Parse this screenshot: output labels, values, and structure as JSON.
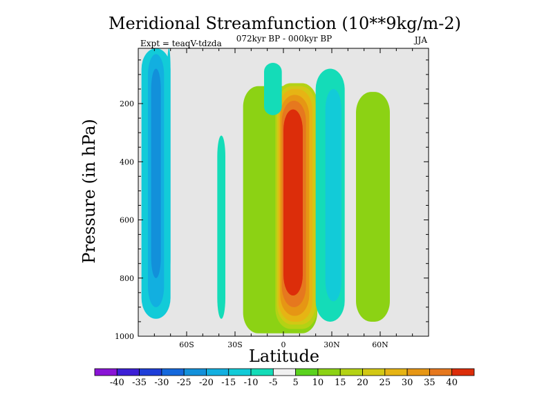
{
  "chart_data": {
    "type": "heatmap",
    "title": "Meridional Streamfunction (10**9kg/m-2)",
    "subtitle_left": "Expt = teaqV-tdzda",
    "subtitle_center": "072kyr BP - 000kyr BP",
    "subtitle_right": "JJA",
    "xlabel": "Latitude",
    "ylabel": "Pressure (in hPa)",
    "xlim": [
      -90,
      90
    ],
    "ylim": [
      1000,
      10
    ],
    "y_inverted": true,
    "x_ticks": [
      {
        "value": -60,
        "label": "60S"
      },
      {
        "value": -30,
        "label": "30S"
      },
      {
        "value": 0,
        "label": "0"
      },
      {
        "value": 30,
        "label": "30N"
      },
      {
        "value": 60,
        "label": "60N"
      }
    ],
    "y_ticks": [
      {
        "value": 200,
        "label": "200"
      },
      {
        "value": 400,
        "label": "400"
      },
      {
        "value": 600,
        "label": "600"
      },
      {
        "value": 800,
        "label": "800"
      },
      {
        "value": 1000,
        "label": "1000"
      }
    ],
    "background_color": "#e6e6e6",
    "colorbar": {
      "levels": [
        "-40",
        "-35",
        "-30",
        "-25",
        "-20",
        "-15",
        "-10",
        "-5",
        "5",
        "10",
        "15",
        "20",
        "25",
        "30",
        "35",
        "40"
      ],
      "colors": [
        "#8a14d6",
        "#3c1fd6",
        "#1e3ed8",
        "#1468dc",
        "#1290da",
        "#12afe0",
        "#12cbd8",
        "#14dcb8",
        "#f0f0f0",
        "#5ad21e",
        "#8cd214",
        "#b4d214",
        "#d2c814",
        "#e6b414",
        "#e69614",
        "#e6781e",
        "#dc2d0a"
      ]
    },
    "field_regions": [
      {
        "lat": [
          -88,
          -70
        ],
        "p": [
          10,
          940
        ],
        "bin": "-15"
      },
      {
        "lat": [
          -84,
          -74
        ],
        "p": [
          30,
          900
        ],
        "bin": "-20"
      },
      {
        "lat": [
          -82,
          -76
        ],
        "p": [
          80,
          800
        ],
        "bin": "-25"
      },
      {
        "lat": [
          -72,
          -70
        ],
        "p": [
          10,
          800
        ],
        "bin": "-15"
      },
      {
        "lat": [
          -41,
          -36
        ],
        "p": [
          310,
          940
        ],
        "bin": "-10"
      },
      {
        "lat": [
          -25,
          21
        ],
        "p": [
          140,
          990
        ],
        "bin": "10"
      },
      {
        "lat": [
          -5,
          21
        ],
        "p": [
          130,
          975
        ],
        "bin": "15"
      },
      {
        "lat": [
          -4,
          20
        ],
        "p": [
          140,
          960
        ],
        "bin": "20"
      },
      {
        "lat": [
          -3,
          18
        ],
        "p": [
          150,
          950
        ],
        "bin": "25"
      },
      {
        "lat": [
          -2,
          16
        ],
        "p": [
          170,
          930
        ],
        "bin": "30"
      },
      {
        "lat": [
          -1,
          14
        ],
        "p": [
          190,
          900
        ],
        "bin": "35"
      },
      {
        "lat": [
          0,
          12
        ],
        "p": [
          220,
          860
        ],
        "bin": "40"
      },
      {
        "lat": [
          -12,
          -1
        ],
        "p": [
          60,
          240
        ],
        "bin": "-10"
      },
      {
        "lat": [
          20,
          38
        ],
        "p": [
          80,
          950
        ],
        "bin": "-10"
      },
      {
        "lat": [
          26,
          36
        ],
        "p": [
          150,
          880
        ],
        "bin": "-15"
      },
      {
        "lat": [
          45,
          66
        ],
        "p": [
          160,
          950
        ],
        "bin": "10"
      }
    ]
  }
}
